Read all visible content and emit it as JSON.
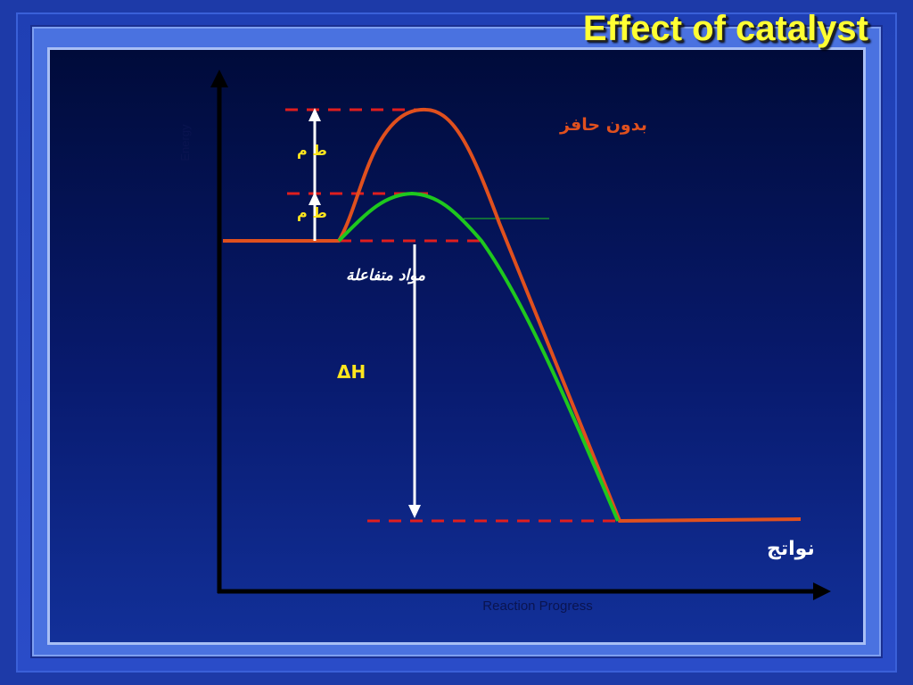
{
  "title": "Effect of catalyst",
  "axes": {
    "y_label": "Energy",
    "x_label": "Reaction Progress"
  },
  "labels": {
    "uncatalyzed": "بدون حافز",
    "ea_uncatalyzed": "ط م",
    "ea_catalyzed": "ط م",
    "reactants": "مواد متفاعلة",
    "enthalpy": "ΔH",
    "products": "نواتج"
  },
  "colors": {
    "background": "#1d3aa8",
    "title": "#ffff33",
    "uncatalyzed_curve": "#e0501e",
    "catalyzed_curve": "#1ec81e",
    "dashed_level": "#e01e1e",
    "arrow": "#ffffff",
    "axis": "#000000",
    "ea_labels": "#ffe61e"
  }
}
